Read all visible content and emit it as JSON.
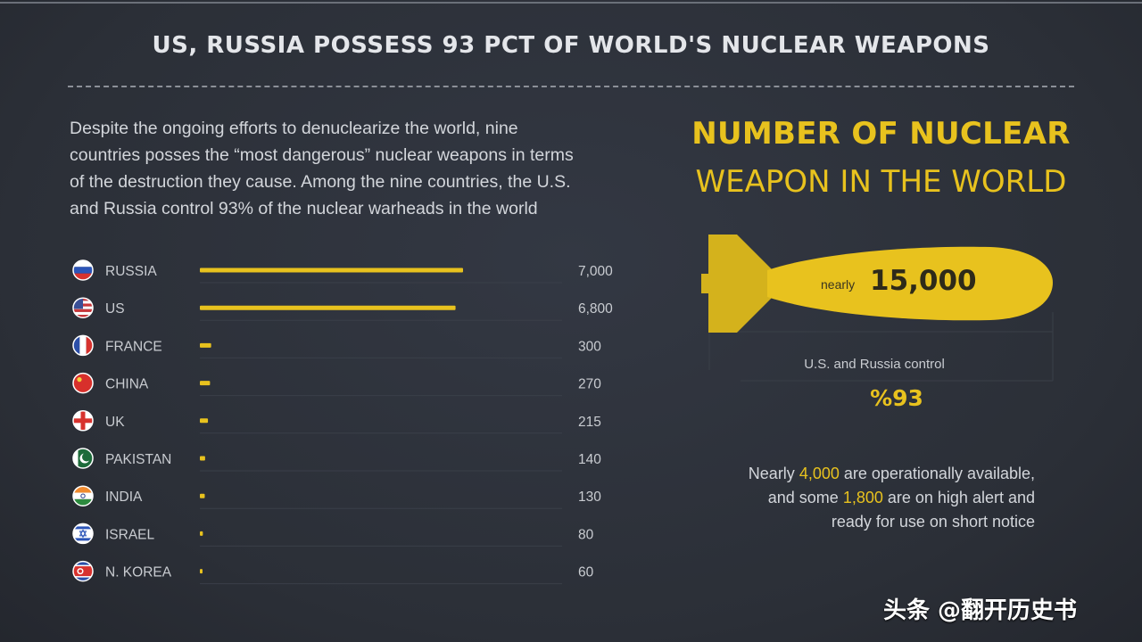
{
  "title": "US, RUSSIA POSSESS 93 PCT OF WORLD'S NUCLEAR WEAPONS",
  "intro": [
    "Despite the ongoing efforts to denuclearize the world, nine",
    "countries posses the “most dangerous” nuclear weapons in terms",
    "of the destruction they cause. Among the nine countries, the U.S.",
    "and Russia control 93% of the nuclear warheads in the world"
  ],
  "side": {
    "title_line1": "NUMBER OF NUCLEAR",
    "title_line2": "WEAPON IN THE WORLD",
    "nearly": "nearly",
    "total": "15,000",
    "control_label": "U.S. and Russia control",
    "control_pct": "%93",
    "note_parts": [
      "Nearly ",
      "4,000",
      " are operationally available, and some ",
      "1,800",
      " are on high alert and ready for use on short notice"
    ]
  },
  "watermark": "头条 @翻开历史书",
  "colors": {
    "accent": "#e8c21e",
    "background": "#2c3039",
    "text": "#d3d6db"
  },
  "chart_data": {
    "type": "bar",
    "orientation": "horizontal",
    "categories": [
      "RUSSIA",
      "US",
      "FRANCE",
      "CHINA",
      "UK",
      "PAKISTAN",
      "INDIA",
      "ISRAEL",
      "N. KOREA"
    ],
    "values": [
      7000,
      6800,
      300,
      270,
      215,
      140,
      130,
      80,
      60
    ],
    "value_labels": [
      "7,000",
      "6,800",
      "300",
      "270",
      "215",
      "140",
      "130",
      "80",
      "60"
    ],
    "flags": [
      "russia-flag-icon",
      "us-flag-icon",
      "france-flag-icon",
      "china-flag-icon",
      "uk-flag-icon",
      "pakistan-flag-icon",
      "india-flag-icon",
      "israel-flag-icon",
      "north-korea-flag-icon"
    ],
    "xlim": [
      0,
      7000
    ],
    "grid": false
  }
}
